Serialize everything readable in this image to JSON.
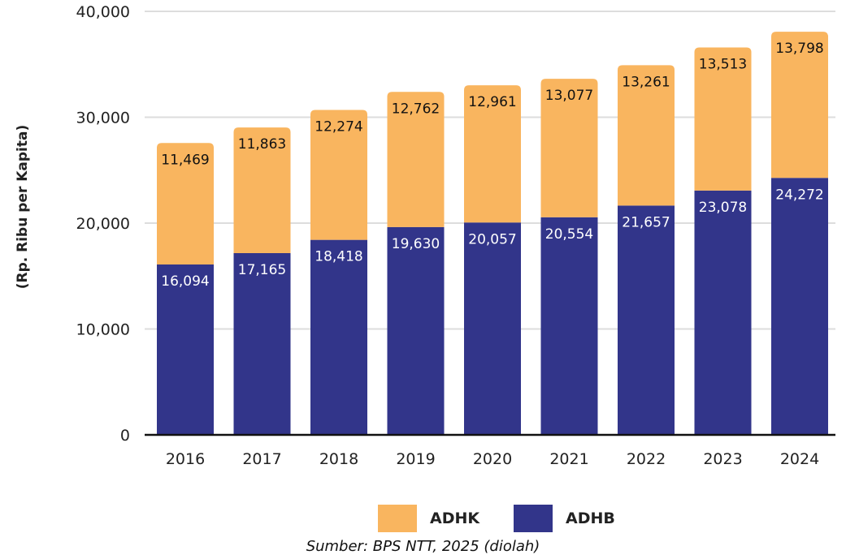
{
  "chart_data": {
    "type": "bar",
    "stacked": true,
    "categories": [
      "2016",
      "2017",
      "2018",
      "2019",
      "2020",
      "2021",
      "2022",
      "2023",
      "2024"
    ],
    "series": [
      {
        "name": "ADHB",
        "color": "#32358A",
        "label_color": "#ffffff",
        "values": [
          16094,
          17165,
          18418,
          19630,
          20057,
          20554,
          21657,
          23078,
          24272
        ]
      },
      {
        "name": "ADHK",
        "color": "#F9B55F",
        "label_color": "#111111",
        "values": [
          11469,
          11863,
          12274,
          12762,
          12961,
          13077,
          13261,
          13513,
          13798
        ]
      }
    ],
    "data_labels": [
      [
        "16,094",
        "17,165",
        "18,418",
        "19,630",
        "20,057",
        "20,554",
        "21,657",
        "23,078",
        "24,272"
      ],
      [
        "11,469",
        "11,863",
        "12,274",
        "12,762",
        "12,961",
        "13,077",
        "13,261",
        "13,513",
        "13,798"
      ]
    ],
    "ylabel": "(Rp. Ribu per Kapita)",
    "xlabel": "",
    "title": "",
    "ylim": [
      0,
      40000
    ],
    "yticks": [
      0,
      10000,
      20000,
      30000,
      40000
    ],
    "ytick_labels": [
      "0",
      "10,000",
      "20,000",
      "30,000",
      "40,000"
    ],
    "grid": true,
    "legend_position": "bottom"
  },
  "legend": [
    {
      "label": "ADHK",
      "color": "#F9B55F"
    },
    {
      "label": "ADHB",
      "color": "#32358A"
    }
  ],
  "source": "Sumber: BPS NTT, 2025 (diolah)"
}
